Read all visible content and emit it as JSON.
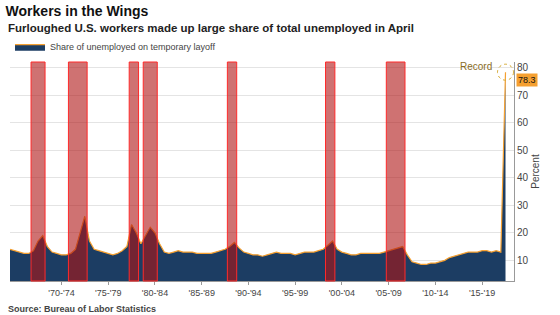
{
  "chart_data": {
    "type": "area",
    "title": "Workers in the Wings",
    "subtitle": "Furloughed U.S. workers made up large share of total unemployed in April",
    "categories": [
      null,
      null,
      null,
      null,
      null,
      null,
      null,
      null,
      null,
      null,
      null,
      "'70-'74",
      null,
      null,
      null,
      null,
      null,
      null,
      null,
      null,
      null,
      "'75-'79",
      null,
      null,
      null,
      null,
      null,
      null,
      null,
      null,
      null,
      "'80-'84",
      null,
      null,
      null,
      null,
      null,
      null,
      null,
      null,
      null,
      "'85-'89",
      null,
      null,
      null,
      null,
      null,
      null,
      null,
      null,
      null,
      "'90-'94",
      null,
      null,
      null,
      null,
      null,
      null,
      null,
      null,
      null,
      "'95-'99",
      null,
      null,
      null,
      null,
      null,
      null,
      null,
      null,
      null,
      "'00-'04",
      null,
      null,
      null,
      null,
      null,
      null,
      null,
      null,
      null,
      "'05-'09",
      null,
      null,
      null,
      null,
      null,
      null,
      null,
      null,
      null,
      "'10-'14",
      null,
      null,
      null,
      null,
      null,
      null,
      null,
      null,
      null,
      "'15-'19",
      null,
      null,
      null,
      null,
      null
    ],
    "series": [
      {
        "name": "Share of unemployed on temporary layoff",
        "color": "#f5a031",
        "values": [
          14,
          13.5,
          13,
          12.5,
          12.5,
          13.5,
          17,
          19,
          15,
          13,
          12.5,
          12,
          12,
          12.5,
          14,
          20,
          26,
          17,
          14,
          13.5,
          13,
          12.5,
          12,
          12.5,
          13.5,
          15,
          23,
          20,
          16,
          19,
          22,
          20,
          16,
          13,
          12.5,
          13,
          13.5,
          13,
          13,
          13,
          12.5,
          12.5,
          12.5,
          12.5,
          13,
          13.5,
          14,
          15,
          16.5,
          14.5,
          13,
          12.5,
          12,
          12,
          11.5,
          12,
          12.5,
          13,
          12.5,
          12.5,
          12.5,
          12,
          12.5,
          13,
          13,
          13,
          13.5,
          14,
          15.5,
          17,
          14,
          13,
          12.5,
          12,
          12,
          12.5,
          12.5,
          12.5,
          12.5,
          12.5,
          13,
          13.5,
          14,
          14.5,
          15,
          12,
          9.5,
          9,
          8.5,
          8.5,
          9,
          9,
          9.5,
          10,
          11,
          11.5,
          12,
          12.5,
          13,
          13,
          13,
          13.5,
          13.5,
          13,
          13.5,
          13,
          78.3
        ]
      }
    ],
    "recessions": [
      {
        "start": 5,
        "end": 7
      },
      {
        "start": 13,
        "end": 16
      },
      {
        "start": 26,
        "end": 27
      },
      {
        "start": 29,
        "end": 31
      },
      {
        "start": 47,
        "end": 48
      },
      {
        "start": 68,
        "end": 69
      },
      {
        "start": 81,
        "end": 84
      }
    ],
    "ylim": [
      2.5,
      82
    ],
    "yticks": [
      10,
      20,
      30,
      40,
      50,
      60,
      70,
      80
    ],
    "y_label": "Percent",
    "grid": true,
    "legend": "top left",
    "annotations": [
      {
        "text": "Record",
        "x": 106,
        "y": 78.3
      },
      {
        "text": "78.3",
        "y": 78.3
      }
    ],
    "source": "Source: Bureau of Labor Statistics"
  }
}
